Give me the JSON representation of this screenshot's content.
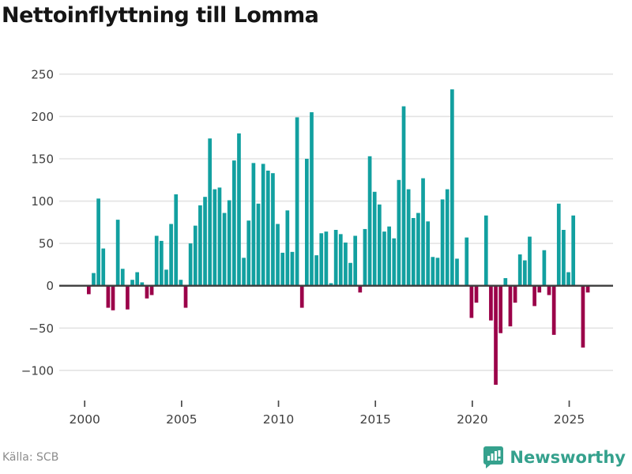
{
  "title": "Nettoinflyttning till Lomma",
  "footer": {
    "source_label": "Källa: SCB",
    "brand": "Newsworthy"
  },
  "colors": {
    "positive_bar": "#12a0a0",
    "negative_bar": "#9b0049",
    "brand_teal": "#35a18d",
    "grid_line": "#e3e3e3",
    "zero_line": "#3c3c3c",
    "tick_mark": "#4a4a4a",
    "axis_text": "#3f3f3f",
    "title_text": "#151515",
    "source_text": "#8c8c8c",
    "background": "#ffffff"
  },
  "chart_data": {
    "type": "bar",
    "title": "Nettoinflyttning till Lomma",
    "xlabel": "",
    "ylabel": "",
    "x_unit": "quarter",
    "start_year": 2000,
    "end_year": 2025,
    "values": [
      -10,
      15,
      103,
      44,
      -26,
      -29,
      78,
      20,
      -28,
      7,
      16,
      4,
      -15,
      -11,
      59,
      53,
      19,
      73,
      108,
      7,
      -26,
      50,
      71,
      95,
      105,
      174,
      114,
      116,
      86,
      101,
      148,
      180,
      33,
      77,
      145,
      97,
      144,
      136,
      133,
      73,
      39,
      89,
      40,
      199,
      -26,
      150,
      205,
      36,
      62,
      64,
      3,
      66,
      61,
      51,
      27,
      59,
      -8,
      67,
      153,
      111,
      96,
      64,
      70,
      56,
      125,
      212,
      114,
      80,
      86,
      127,
      76,
      34,
      33,
      102,
      114,
      232,
      32,
      0,
      57,
      -38,
      -20,
      0,
      83,
      -41,
      -117,
      -56,
      9,
      -48,
      -20,
      37,
      30,
      58,
      -24,
      -8,
      42,
      -11,
      -58,
      97,
      66,
      16,
      83,
      0,
      -73,
      -8
    ],
    "x_tick_years": [
      2000,
      2005,
      2010,
      2015,
      2020,
      2025
    ],
    "x_tick_labels": [
      "2000",
      "2005",
      "2010",
      "2015",
      "2020",
      "2025"
    ],
    "y_ticks": [
      250,
      200,
      150,
      100,
      50,
      0,
      -50,
      -100
    ],
    "y_tick_labels": [
      "250",
      "200",
      "150",
      "100",
      "50",
      "0",
      "−50",
      "−100"
    ],
    "ylim": [
      -125,
      255
    ],
    "grid": "horizontal",
    "legend": "none",
    "source": "SCB"
  }
}
